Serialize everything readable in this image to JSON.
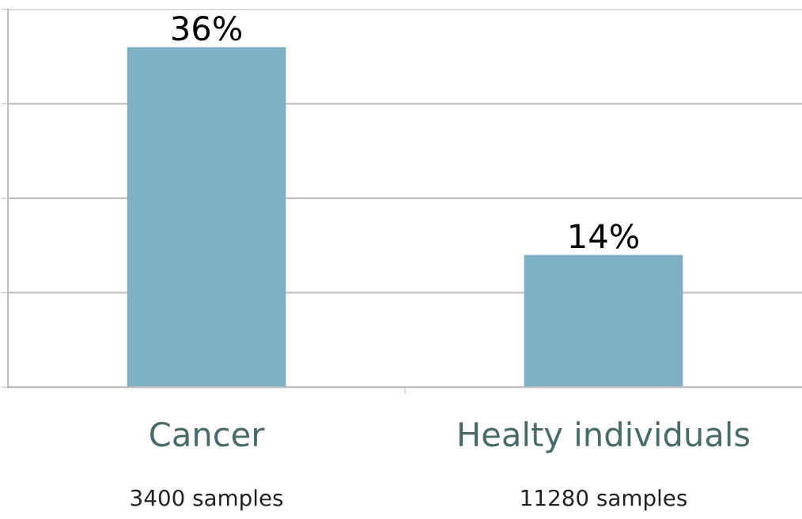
{
  "chart_data": {
    "type": "bar",
    "categories": [
      "Cancer",
      "Healty individuals"
    ],
    "values": [
      36,
      14
    ],
    "color": "#7fb0c6",
    "value_labels": [
      "36%",
      "14%"
    ],
    "ylim": [
      0,
      40
    ],
    "yticks": [
      {
        "value": 0,
        "label": null
      },
      {
        "value": 10,
        "label": null
      },
      {
        "value": 20,
        "label": null
      },
      {
        "value": 30,
        "label": null
      },
      {
        "value": 40,
        "label": null
      }
    ],
    "grid": "y",
    "annotations": [
      "3400 samples",
      "11280 samples"
    ]
  }
}
